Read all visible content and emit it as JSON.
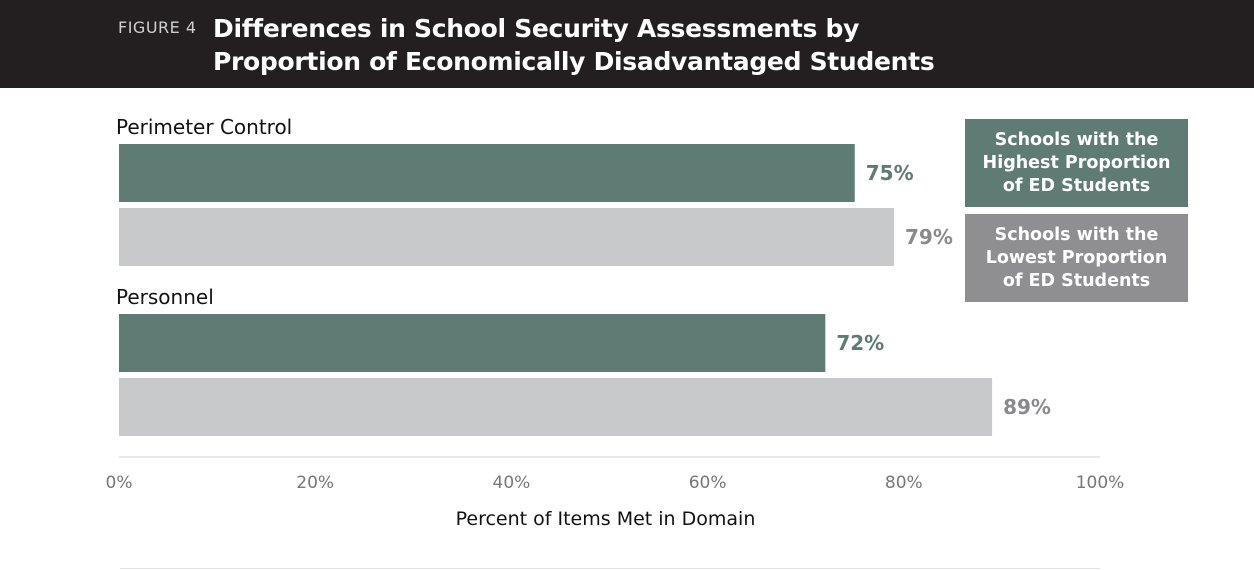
{
  "header": {
    "figure_label": "FIGURE 4",
    "title": "Differences in School Security Assessments by Proportion of Economically Disadvantaged Students"
  },
  "colors": {
    "header_bg": "#231f20",
    "high_ed": "#5e7b74",
    "low_ed": "#c8c9cb",
    "low_ed_legend": "#8f8f91",
    "high_label": "#5e7b74",
    "low_label": "#8a8a8c"
  },
  "legend": {
    "high": "Schools with the Highest Proportion of ED Students",
    "low": "Schools with the Lowest Proportion of ED Students"
  },
  "chart_data": {
    "type": "bar",
    "orientation": "horizontal",
    "categories": [
      "Perimeter Control",
      "Personnel"
    ],
    "series": [
      {
        "name": "Schools with the Highest Proportion of ED Students",
        "values": [
          75,
          72
        ],
        "labels": [
          "75%",
          "72%"
        ]
      },
      {
        "name": "Schools with the Lowest Proportion of ED Students",
        "values": [
          79,
          89
        ],
        "labels": [
          "79%",
          "89%"
        ]
      }
    ],
    "xlabel": "Percent of Items Met in Domain",
    "xlim": [
      0,
      100
    ],
    "xticks": [
      "0%",
      "20%",
      "40%",
      "60%",
      "80%",
      "100%"
    ],
    "grid": false,
    "legend_position": "top-right"
  }
}
